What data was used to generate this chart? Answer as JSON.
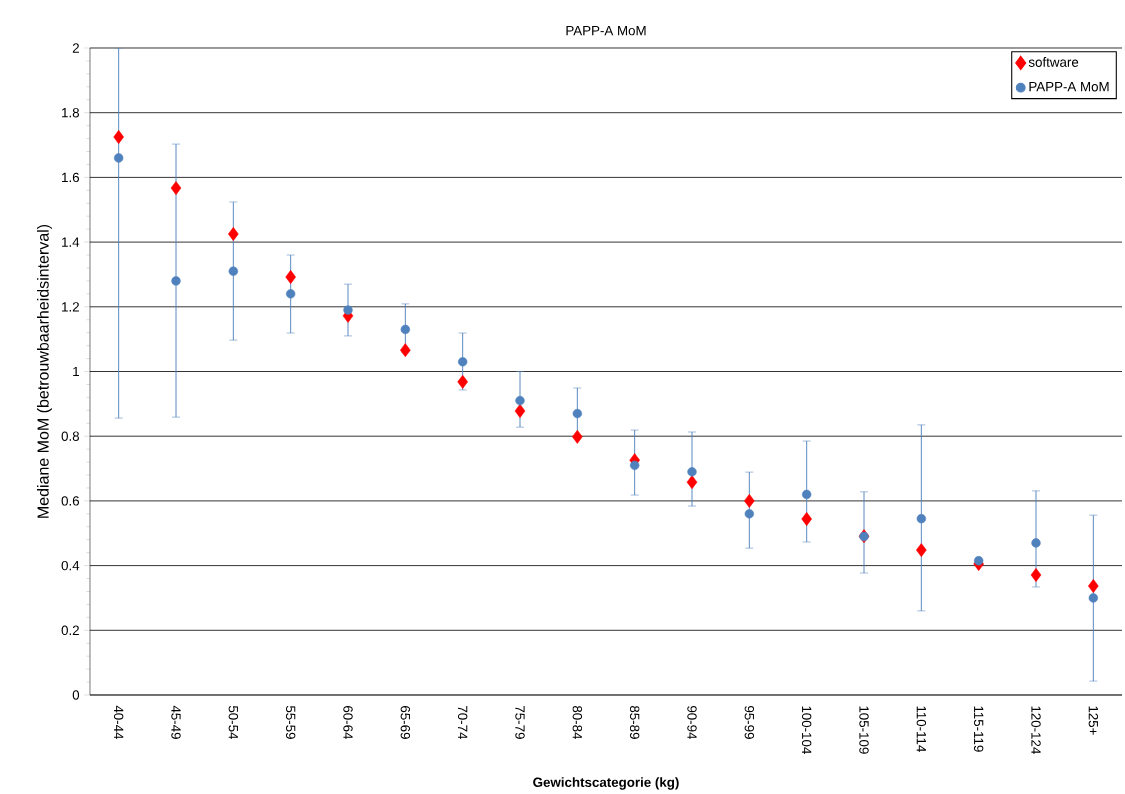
{
  "chart_data": {
    "type": "scatter",
    "title": "PAPP-A MoM",
    "xlabel": "Gewichtscategorie (kg)",
    "ylabel": "Mediane MoM (betrouwbaarheidsinterval)",
    "categories": [
      "40-44",
      "45-49",
      "50-54",
      "55-59",
      "60-64",
      "65-69",
      "70-74",
      "75-79",
      "80-84",
      "85-89",
      "90-94",
      "95-99",
      "100-104",
      "105-109",
      "110-114",
      "115-119",
      "120-124",
      "125+"
    ],
    "series": [
      {
        "name": "software",
        "color": "#ff0000",
        "marker": "diamond",
        "values": [
          1.725,
          1.567,
          1.425,
          1.292,
          1.172,
          1.066,
          0.968,
          0.878,
          0.798,
          0.726,
          0.658,
          0.6,
          0.544,
          0.491,
          0.448,
          0.405,
          0.371,
          0.337
        ]
      },
      {
        "name": "PAPP-A MoM",
        "color": "#4f81bd",
        "marker": "circle",
        "values": [
          1.66,
          1.28,
          1.31,
          1.24,
          1.19,
          1.13,
          1.03,
          0.91,
          0.87,
          0.71,
          0.69,
          0.56,
          0.62,
          0.49,
          0.545,
          0.415,
          0.47,
          0.3
        ],
        "errors": [
          [
            0.856,
            2.0
          ],
          [
            0.859,
            1.703
          ],
          [
            1.097,
            1.524
          ],
          [
            1.119,
            1.36
          ],
          [
            1.11,
            1.27
          ],
          [
            1.06,
            1.209
          ],
          [
            0.943,
            1.119
          ],
          [
            0.828,
            1.0
          ],
          [
            0.8,
            0.949
          ],
          [
            0.618,
            0.819
          ],
          [
            0.584,
            0.813
          ],
          [
            0.454,
            0.689
          ],
          [
            0.473,
            0.785
          ],
          [
            0.377,
            0.628
          ],
          [
            0.26,
            0.835
          ],
          null,
          [
            0.334,
            0.631
          ],
          [
            0.043,
            0.556
          ]
        ]
      }
    ],
    "ylim": [
      0,
      2
    ],
    "yticks": [
      0,
      0.2,
      0.4,
      0.6,
      0.8,
      1,
      1.2,
      1.4,
      1.6,
      1.8,
      2
    ],
    "grid": "y",
    "legend": "top right"
  }
}
